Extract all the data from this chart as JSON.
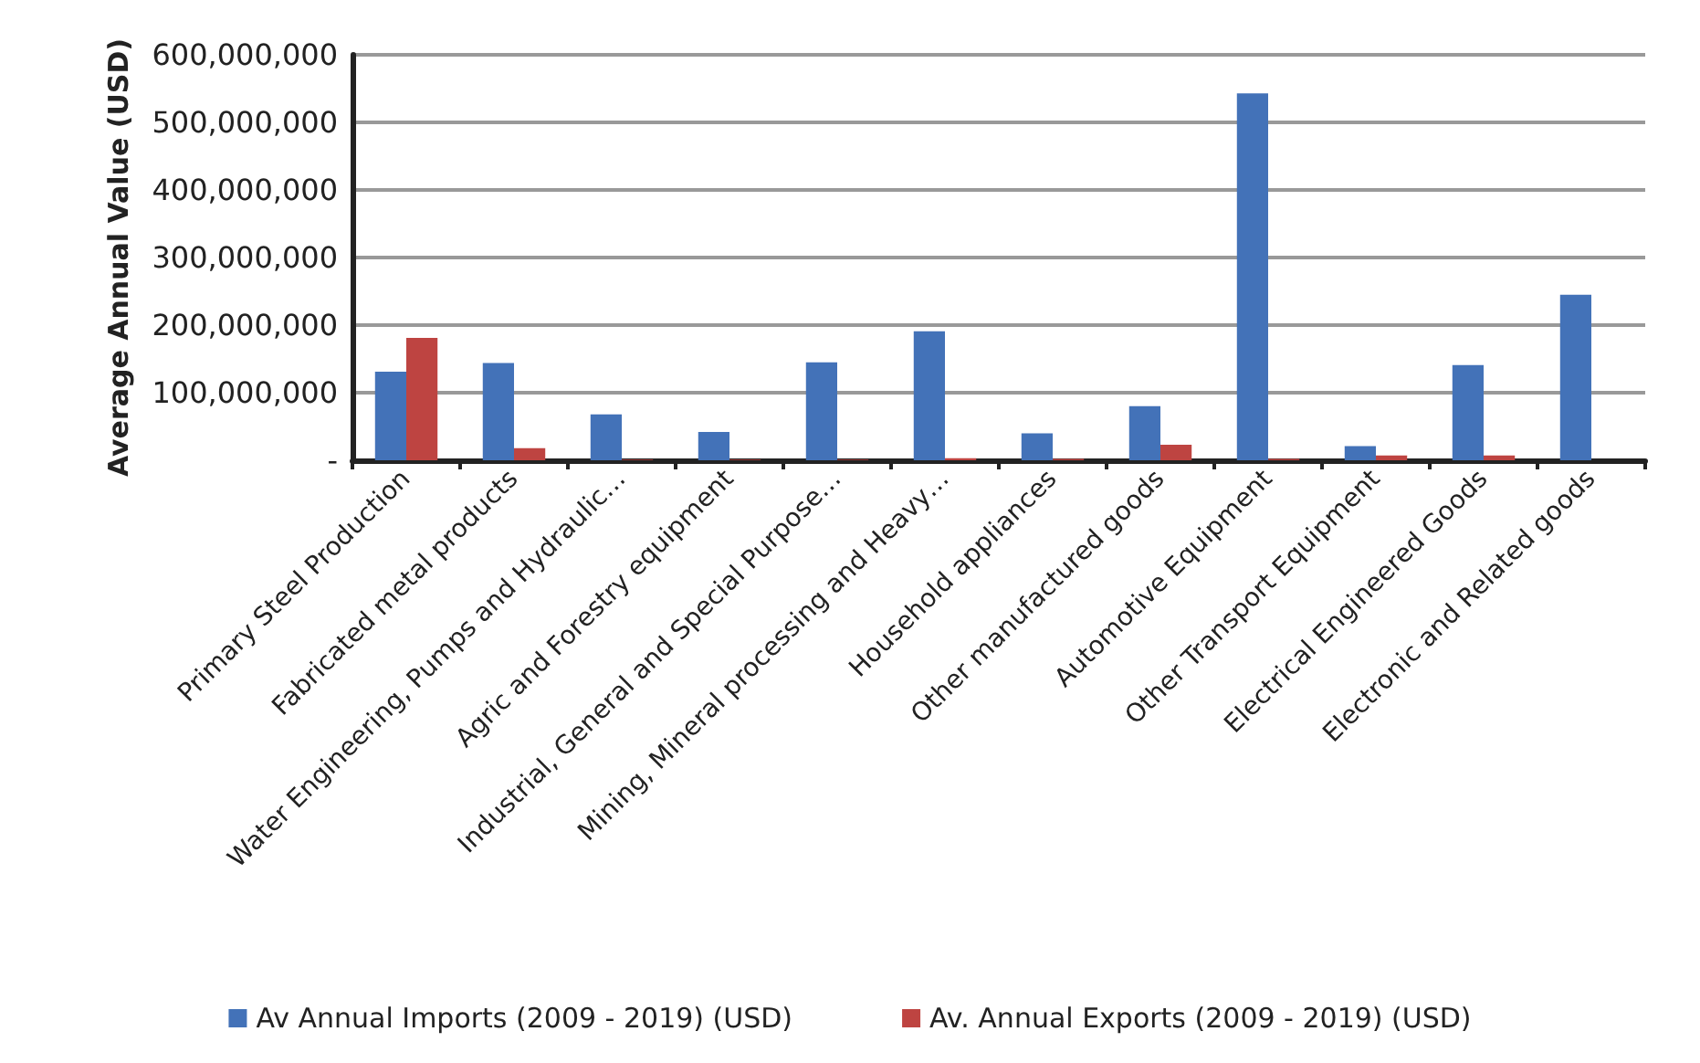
{
  "chart_data": {
    "type": "bar",
    "ylabel": "Average Annual Value (USD)",
    "categories": [
      "Primary Steel Production",
      "Fabricated metal products",
      "Water Engineering, Pumps and Hydraulic…",
      "Agric and Forestry equipment",
      "Industrial, General and Special Purpose…",
      "Mining, Mineral processing and Heavy…",
      "Household appliances",
      "Other manufactured goods",
      "Automotive Equipment",
      "Other Transport Equipment",
      "Electrical Engineered Goods",
      "Electronic and Related goods"
    ],
    "series": [
      {
        "name": "Av Annual Imports (2009 - 2019) (USD)",
        "color": "#4372b8",
        "values": [
          131000000,
          144000000,
          68000000,
          42000000,
          145000000,
          191000000,
          40000000,
          80000000,
          543000000,
          21000000,
          141000000,
          245000000
        ]
      },
      {
        "name": "Av. Annual Exports (2009 - 2019) (USD)",
        "color": "#be4441",
        "values": [
          181000000,
          18000000,
          1000000,
          1000000,
          1000000,
          3000000,
          2000000,
          23000000,
          2000000,
          7000000,
          7000000,
          0
        ]
      }
    ],
    "ylim": [
      0,
      600000000
    ],
    "yticks": [
      {
        "value": 0,
        "label": "-"
      },
      {
        "value": 100000000,
        "label": "100,000,000"
      },
      {
        "value": 200000000,
        "label": "200,000,000"
      },
      {
        "value": 300000000,
        "label": "300,000,000"
      },
      {
        "value": 400000000,
        "label": "400,000,000"
      },
      {
        "value": 500000000,
        "label": "500,000,000"
      },
      {
        "value": 600000000,
        "label": "600,000,000"
      }
    ],
    "grid": "y",
    "legend": "bottom"
  }
}
